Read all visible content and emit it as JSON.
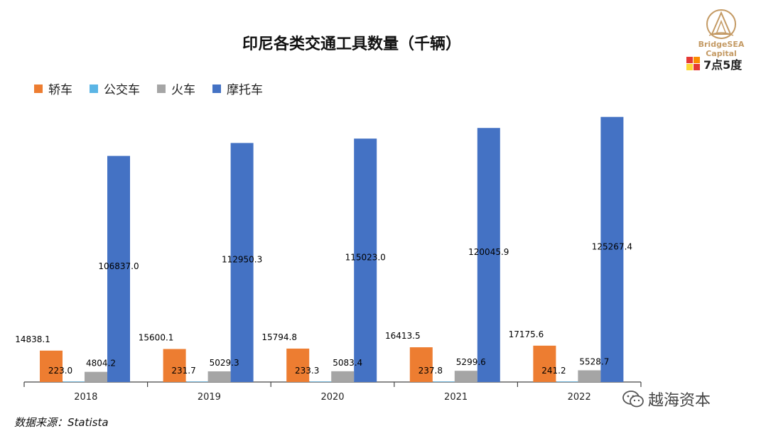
{
  "chart_data": {
    "type": "bar",
    "title": "印尼各类交通工具数量（千辆）",
    "categories": [
      "2018",
      "2019",
      "2020",
      "2021",
      "2022"
    ],
    "series": [
      {
        "name": "轿车",
        "color": "#ED7D31",
        "values": [
          14838.1,
          15600.1,
          15794.8,
          16413.5,
          17175.6
        ],
        "labels": [
          "14838.1",
          "15600.1",
          "15794.8",
          "16413.5",
          "17175.6"
        ]
      },
      {
        "name": "公交车",
        "color": "#5BB5E5",
        "values": [
          223.0,
          231.7,
          233.3,
          237.8,
          241.2
        ],
        "labels": [
          "223.0",
          "231.7",
          "233.3",
          "237.8",
          "241.2"
        ]
      },
      {
        "name": "火车",
        "color": "#A5A5A5",
        "values": [
          4804.2,
          5029.3,
          5083.4,
          5299.6,
          5528.7
        ],
        "labels": [
          "4804.2",
          "5029.3",
          "5083.4",
          "5299.6",
          "5528.7"
        ]
      },
      {
        "name": "摩托车",
        "color": "#4472C4",
        "values": [
          106837.0,
          112950.3,
          115023.0,
          120045.9,
          125267.4
        ],
        "labels": [
          "106837.0",
          "112950.3",
          "115023.0",
          "120045.9",
          "125267.4"
        ]
      }
    ],
    "ylim": [
      0,
      127500
    ],
    "legend_position": "top-left",
    "grid": false
  },
  "branding": {
    "logo_text": "BridgeSEA Capital",
    "badge_text": "7点5度",
    "watermark_text": "越海资本"
  },
  "source_text": "数据来源：Statista"
}
